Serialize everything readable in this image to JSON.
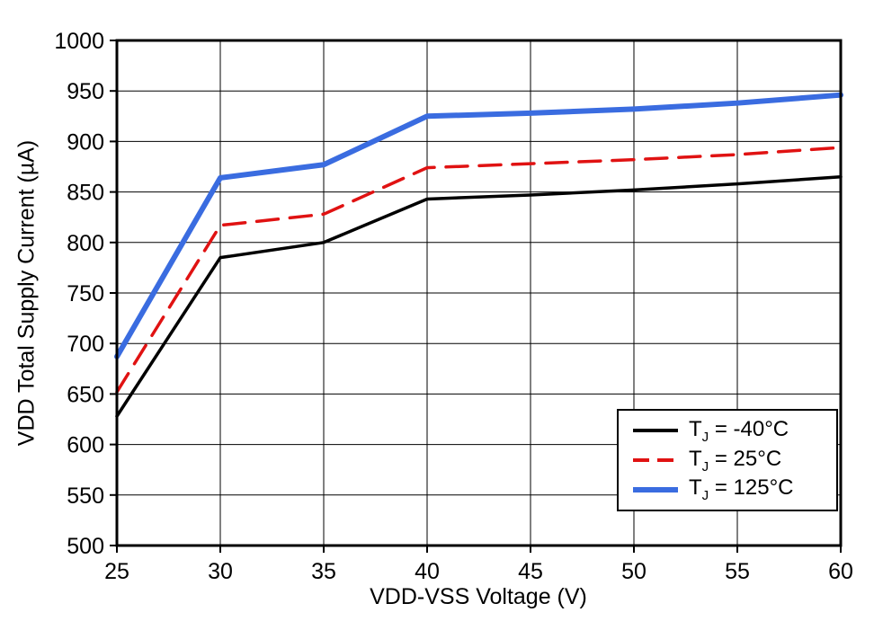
{
  "chart_data": {
    "type": "line",
    "title": "",
    "xlabel": "VDD-VSS Voltage (V)",
    "ylabel": "VDD Total Supply Current (µA)",
    "xlim": [
      25,
      60
    ],
    "ylim": [
      500,
      1000
    ],
    "x_ticks": [
      25,
      30,
      35,
      40,
      45,
      50,
      55,
      60
    ],
    "y_ticks": [
      500,
      550,
      600,
      650,
      700,
      750,
      800,
      850,
      900,
      950,
      1000
    ],
    "grid": true,
    "legend_position": "lower right",
    "x": [
      25,
      30,
      35,
      40,
      45,
      50,
      55,
      60
    ],
    "series": [
      {
        "name": "TJ = -40C",
        "color": "#000000",
        "dash": "none",
        "width": 3.5,
        "values": [
          628,
          785,
          800,
          843,
          847,
          852,
          858,
          865
        ]
      },
      {
        "name": "TJ = 25C",
        "color": "#e01212",
        "dash": "24 13",
        "width": 3.5,
        "values": [
          652,
          817,
          828,
          874,
          878,
          882,
          887,
          894
        ]
      },
      {
        "name": "TJ = 125C",
        "color": "#3a6ce0",
        "dash": "none",
        "width": 6,
        "values": [
          687,
          864,
          877,
          925,
          928,
          932,
          938,
          946
        ]
      }
    ]
  },
  "legend": {
    "items": [
      {
        "pre": "T",
        "sub": "J",
        "post": " = -40°C",
        "color": "#000000",
        "width": 4,
        "dash": "none"
      },
      {
        "pre": "T",
        "sub": "J",
        "post": " = 25°C",
        "color": "#e01212",
        "width": 4,
        "dash": "18 9"
      },
      {
        "pre": "T",
        "sub": "J",
        "post": " = 125°C",
        "color": "#3a6ce0",
        "width": 6,
        "dash": "none"
      }
    ]
  }
}
